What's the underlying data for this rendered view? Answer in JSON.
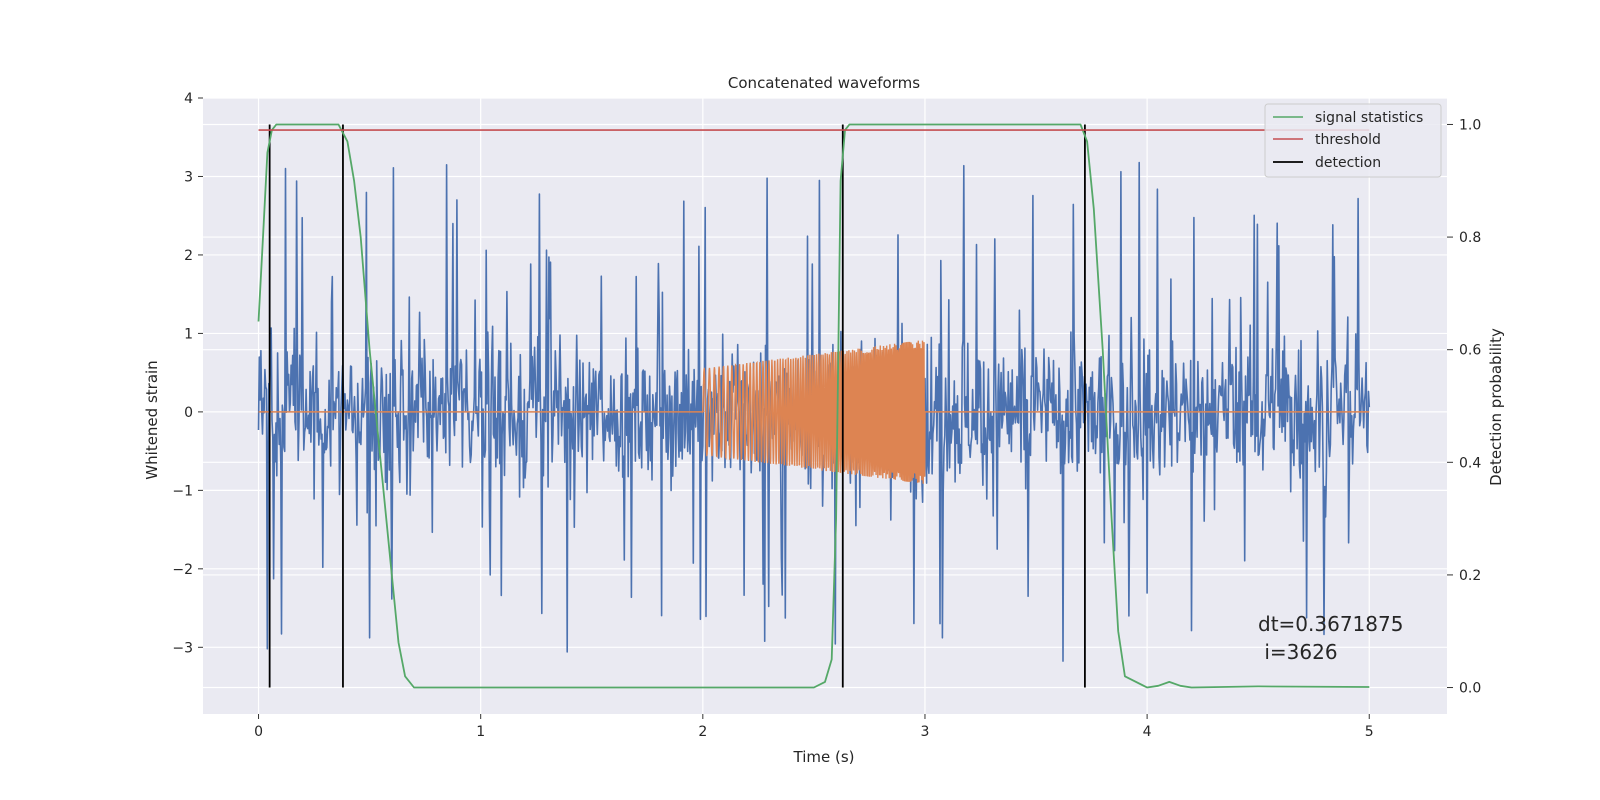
{
  "chart_data": {
    "type": "line",
    "title": "Concatenated waveforms",
    "xlabel": "Time (s)",
    "ylabel": "Whitened strain",
    "y2label": "Detection probability",
    "xlim": [
      -0.25,
      5.35
    ],
    "ylim": [
      -3.85,
      4.0
    ],
    "y2lim": [
      -0.047,
      1.047
    ],
    "xticks": [
      0,
      1,
      2,
      3,
      4,
      5
    ],
    "yticks": [
      -3,
      -2,
      -1,
      0,
      1,
      2,
      3,
      4
    ],
    "y2ticks": [
      0.0,
      0.2,
      0.4,
      0.6,
      0.8,
      1.0
    ],
    "xtick_labels": [
      "0",
      "1",
      "2",
      "3",
      "4",
      "5"
    ],
    "ytick_labels": [
      "−3",
      "−2",
      "−1",
      "0",
      "1",
      "2",
      "3",
      "4"
    ],
    "y2tick_labels": [
      "0.0",
      "0.2",
      "0.4",
      "0.6",
      "0.8",
      "1.0"
    ],
    "grid": true,
    "legend_position": "top-right",
    "colors": {
      "noise": "#4c72b0",
      "injection": "#dd8452",
      "signal_statistics": "#55a868",
      "threshold": "#c44e52",
      "detection": "#000000",
      "axes_bg": "#eaeaf2"
    },
    "series": [
      {
        "name": "signal statistics",
        "axis": "right",
        "x": [
          0.0,
          0.02,
          0.04,
          0.06,
          0.08,
          0.1,
          0.15,
          0.2,
          0.3,
          0.36,
          0.4,
          0.43,
          0.46,
          0.5,
          0.55,
          0.6,
          0.63,
          0.66,
          0.7,
          0.8,
          1.0,
          1.5,
          2.0,
          2.5,
          2.55,
          2.58,
          2.6,
          2.62,
          2.64,
          2.66,
          2.7,
          3.0,
          3.5,
          3.7,
          3.73,
          3.76,
          3.8,
          3.84,
          3.87,
          3.9,
          4.0,
          4.05,
          4.1,
          4.15,
          4.2,
          4.5,
          5.0
        ],
        "values": [
          0.65,
          0.8,
          0.95,
          0.99,
          1.0,
          1.0,
          1.0,
          1.0,
          1.0,
          1.0,
          0.97,
          0.9,
          0.8,
          0.6,
          0.4,
          0.2,
          0.08,
          0.02,
          0.0,
          0.0,
          0.0,
          0.0,
          0.0,
          0.0,
          0.01,
          0.05,
          0.3,
          0.9,
          0.99,
          1.0,
          1.0,
          1.0,
          1.0,
          1.0,
          0.97,
          0.85,
          0.6,
          0.3,
          0.1,
          0.02,
          0.0,
          0.003,
          0.01,
          0.003,
          0.0,
          0.002,
          0.001
        ]
      },
      {
        "name": "threshold",
        "axis": "right",
        "x": [
          0.0,
          5.0
        ],
        "values": [
          0.99,
          0.99
        ]
      }
    ],
    "detections": {
      "name": "detection",
      "x": [
        0.05,
        0.38,
        2.63,
        3.72
      ],
      "y_range": [
        0.0,
        1.0
      ]
    },
    "noise": {
      "x_range": [
        0.0,
        5.0
      ],
      "typical_amplitude": 0.55,
      "spike_range": [
        -3.5,
        3.6
      ]
    },
    "injection": {
      "x_range": [
        2.0,
        3.0
      ],
      "amplitude_start": 0.55,
      "amplitude_end": 0.92
    },
    "annotation": {
      "line1": "dt=0.3671875",
      "line2": " i=3626"
    }
  }
}
